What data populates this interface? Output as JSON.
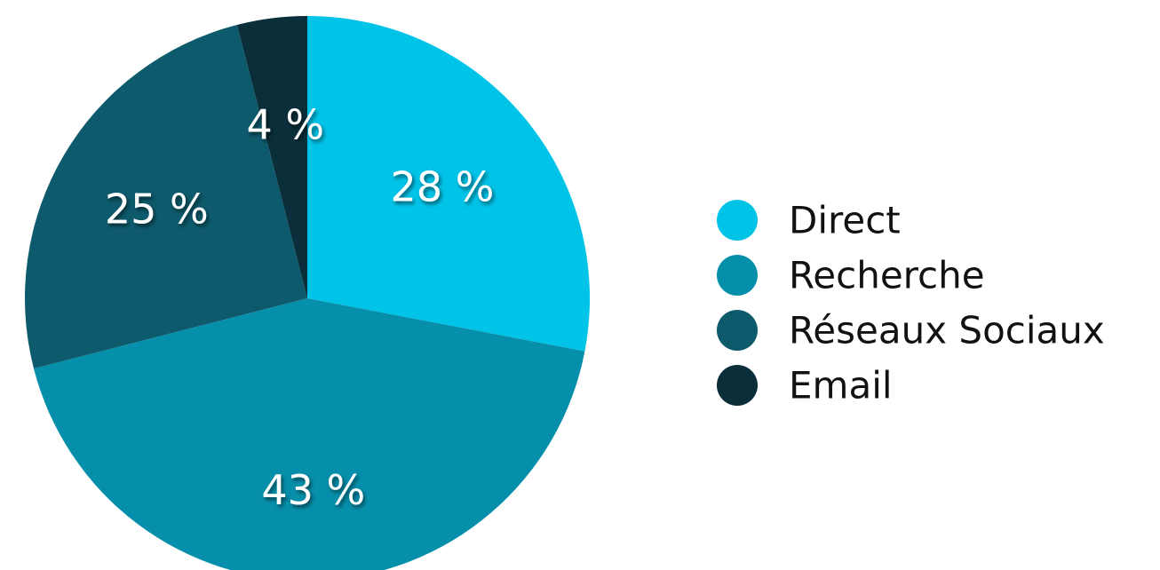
{
  "chart_data": {
    "type": "pie",
    "title": "",
    "categories": [
      "Direct",
      "Recherche",
      "Réseaux Sociaux",
      "Email"
    ],
    "values": [
      28,
      43,
      25,
      4
    ],
    "data_labels": [
      "28 %",
      "43 %",
      "25 %",
      "4 %"
    ],
    "colors": [
      "#00c3e8",
      "#068faa",
      "#0d5a6c",
      "#0a2e3a"
    ],
    "start_angle": "top",
    "direction": "clockwise",
    "legend": {
      "position": "right",
      "marker": "circle"
    }
  }
}
